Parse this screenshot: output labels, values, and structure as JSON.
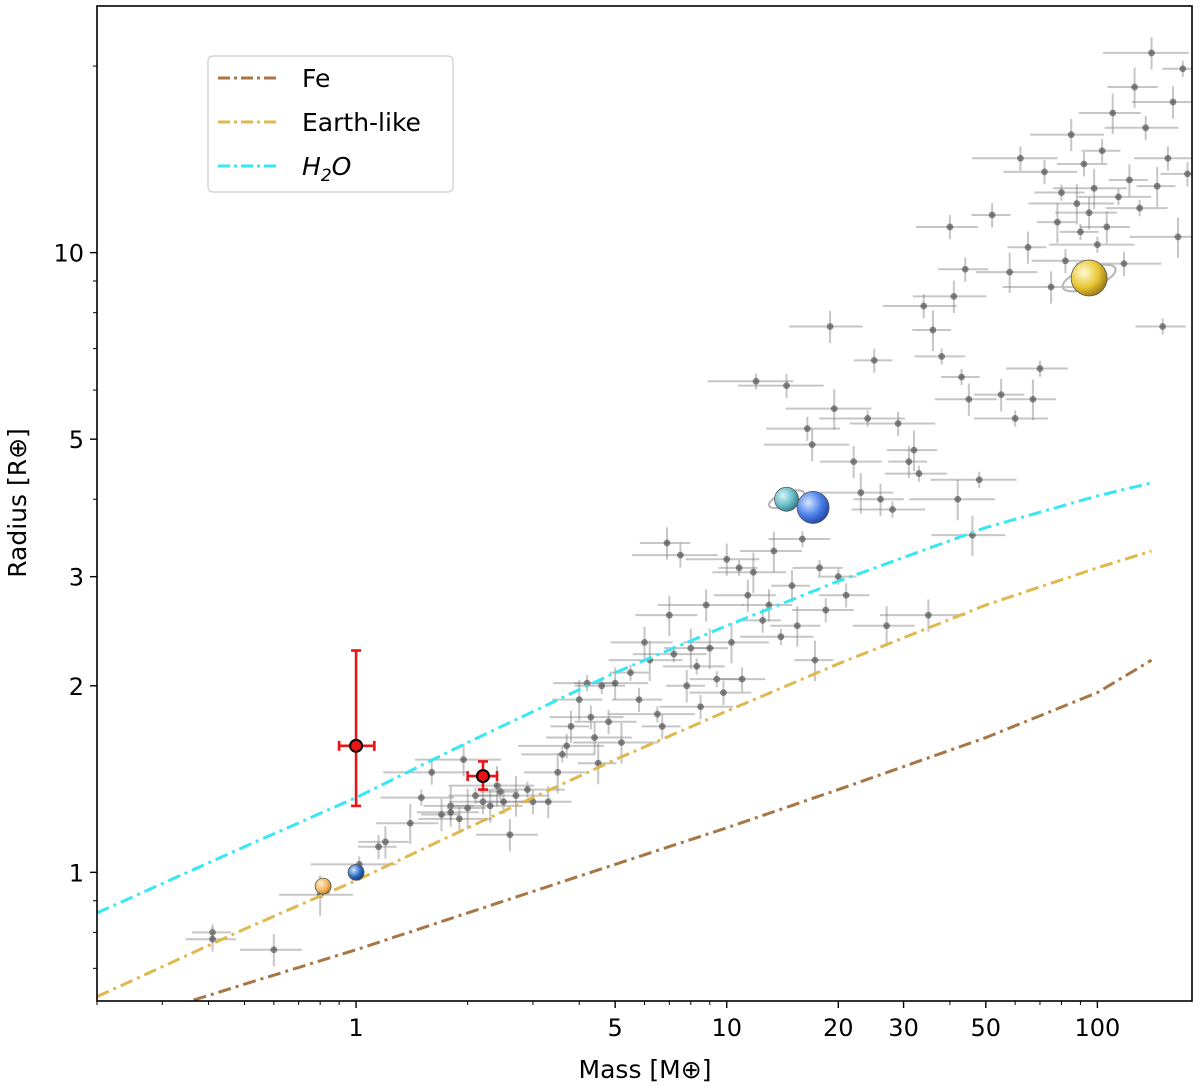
{
  "chart_data": {
    "type": "scatter",
    "title": "",
    "xlabel": "Mass [M⊕]",
    "ylabel": "Radius [R⊕]",
    "xscale": "log",
    "yscale": "log",
    "xlim": [
      0.2,
      180
    ],
    "ylim": [
      0.62,
      25
    ],
    "x_ticks": [
      1,
      5,
      10,
      20,
      30,
      50,
      100
    ],
    "x_tick_labels": [
      "1",
      "5",
      "10",
      "20",
      "30",
      "50",
      "100"
    ],
    "y_ticks": [
      1,
      2,
      3,
      5,
      10
    ],
    "y_tick_labels": [
      "1",
      "2",
      "3",
      "5",
      "10"
    ],
    "legend_position": "upper-left",
    "composition_curves": [
      {
        "name": "Fe",
        "label": "Fe",
        "color": "#a87545",
        "mass": [
          0.2,
          0.3,
          0.5,
          1,
          2,
          5,
          10,
          20,
          50,
          100,
          140
        ],
        "radius": [
          0.54,
          0.6,
          0.66,
          0.75,
          0.86,
          1.03,
          1.18,
          1.36,
          1.65,
          1.95,
          2.2
        ]
      },
      {
        "name": "Earth-like",
        "label": "Earth-like",
        "color": "#e0b84e",
        "mass": [
          0.2,
          0.5,
          1,
          2,
          5,
          10,
          20,
          50,
          100,
          140
        ],
        "radius": [
          0.63,
          0.81,
          0.97,
          1.18,
          1.52,
          1.82,
          2.17,
          2.7,
          3.1,
          3.3
        ]
      },
      {
        "name": "H2O",
        "label_main": "H",
        "label_sub": "2",
        "label_end": "O",
        "color": "#37e8f2",
        "mass": [
          0.2,
          0.5,
          1,
          2,
          5,
          10,
          20,
          50,
          100,
          140
        ],
        "radius": [
          0.86,
          1.1,
          1.32,
          1.62,
          2.1,
          2.5,
          2.95,
          3.6,
          4.05,
          4.25
        ]
      }
    ],
    "highlighted_planets": [
      {
        "mass": 1.0,
        "radius": 1.6,
        "mass_err": [
          0.1,
          0.12
        ],
        "radius_err": [
          0.32,
          0.68
        ],
        "color": "#e81416"
      },
      {
        "mass": 2.2,
        "radius": 1.43,
        "mass_err": [
          0.2,
          0.2
        ],
        "radius_err": [
          0.07,
          0.08
        ],
        "color": "#e81416"
      }
    ],
    "solar_system": [
      {
        "name": "Venus",
        "mass": 0.815,
        "radius": 0.95,
        "color": "#f0b35a"
      },
      {
        "name": "Earth",
        "mass": 1.0,
        "radius": 1.0,
        "color": "#2f6fc4"
      },
      {
        "name": "Uranus",
        "mass": 14.5,
        "radius": 4.0,
        "color": "#5fb8c4"
      },
      {
        "name": "Neptune",
        "mass": 17.1,
        "radius": 3.88,
        "color": "#4a7ee8"
      },
      {
        "name": "Saturn",
        "mass": 95,
        "radius": 9.1,
        "color": "#e8c632"
      }
    ],
    "exoplanets": [
      [
        0.41,
        0.8
      ],
      [
        0.41,
        0.78
      ],
      [
        0.6,
        0.75
      ],
      [
        0.8,
        0.92
      ],
      [
        1.02,
        1.03
      ],
      [
        1.15,
        1.1
      ],
      [
        1.2,
        1.12
      ],
      [
        1.4,
        1.2
      ],
      [
        1.5,
        1.32
      ],
      [
        1.6,
        1.45
      ],
      [
        1.7,
        1.24
      ],
      [
        1.8,
        1.28
      ],
      [
        1.8,
        1.25
      ],
      [
        1.9,
        1.22
      ],
      [
        1.95,
        1.52
      ],
      [
        2.0,
        1.27
      ],
      [
        2.1,
        1.33
      ],
      [
        2.2,
        1.3
      ],
      [
        2.3,
        1.28
      ],
      [
        2.4,
        1.38
      ],
      [
        2.45,
        1.35
      ],
      [
        2.5,
        1.3
      ],
      [
        2.6,
        1.15
      ],
      [
        2.7,
        1.33
      ],
      [
        2.9,
        1.36
      ],
      [
        3.0,
        1.3
      ],
      [
        3.3,
        1.3
      ],
      [
        3.5,
        1.45
      ],
      [
        3.6,
        1.55
      ],
      [
        3.7,
        1.6
      ],
      [
        3.8,
        1.72
      ],
      [
        4.0,
        1.9
      ],
      [
        4.2,
        2.02
      ],
      [
        4.3,
        1.78
      ],
      [
        4.4,
        1.65
      ],
      [
        4.5,
        1.5
      ],
      [
        4.6,
        2.0
      ],
      [
        4.8,
        1.75
      ],
      [
        5.0,
        2.02
      ],
      [
        5.2,
        1.62
      ],
      [
        5.5,
        2.1
      ],
      [
        5.8,
        1.9
      ],
      [
        6.0,
        2.35
      ],
      [
        6.2,
        2.2
      ],
      [
        6.5,
        1.8
      ],
      [
        6.7,
        1.72
      ],
      [
        6.9,
        3.4
      ],
      [
        7.0,
        2.6
      ],
      [
        7.2,
        2.25
      ],
      [
        7.5,
        3.25
      ],
      [
        7.8,
        2.0
      ],
      [
        8.0,
        2.3
      ],
      [
        8.3,
        2.15
      ],
      [
        8.5,
        1.85
      ],
      [
        8.8,
        2.7
      ],
      [
        9.0,
        2.3
      ],
      [
        9.4,
        2.05
      ],
      [
        9.8,
        1.95
      ],
      [
        10.0,
        3.2
      ],
      [
        10.3,
        2.35
      ],
      [
        10.8,
        3.1
      ],
      [
        11.0,
        2.05
      ],
      [
        11.4,
        2.8
      ],
      [
        11.8,
        3.05
      ],
      [
        12.0,
        6.2
      ],
      [
        12.5,
        2.55
      ],
      [
        13.0,
        2.7
      ],
      [
        13.4,
        3.3
      ],
      [
        14.0,
        2.4
      ],
      [
        14.5,
        6.1
      ],
      [
        15.0,
        2.9
      ],
      [
        15.5,
        2.5
      ],
      [
        16.0,
        3.45
      ],
      [
        16.5,
        5.2
      ],
      [
        17.0,
        4.9
      ],
      [
        17.3,
        2.2
      ],
      [
        17.8,
        3.1
      ],
      [
        18.5,
        2.65
      ],
      [
        19.0,
        7.6
      ],
      [
        19.5,
        5.6
      ],
      [
        20.0,
        3.0
      ],
      [
        21.0,
        2.8
      ],
      [
        22.0,
        4.6
      ],
      [
        23.0,
        4.1
      ],
      [
        24.0,
        5.4
      ],
      [
        25.0,
        6.7
      ],
      [
        26.0,
        4.0
      ],
      [
        27.0,
        2.5
      ],
      [
        28.0,
        3.85
      ],
      [
        29.0,
        5.3
      ],
      [
        31.0,
        4.6
      ],
      [
        32.0,
        4.8
      ],
      [
        33.0,
        4.4
      ],
      [
        34.0,
        8.2
      ],
      [
        35.0,
        2.6
      ],
      [
        36.0,
        7.5
      ],
      [
        38.0,
        6.8
      ],
      [
        40.0,
        11.0
      ],
      [
        41.0,
        8.5
      ],
      [
        42.0,
        4.0
      ],
      [
        43.0,
        6.3
      ],
      [
        44.0,
        9.4
      ],
      [
        45.0,
        5.8
      ],
      [
        46.0,
        3.5
      ],
      [
        48.0,
        4.3
      ],
      [
        52.0,
        11.5
      ],
      [
        55.0,
        5.9
      ],
      [
        58.0,
        9.3
      ],
      [
        60.0,
        5.4
      ],
      [
        62.0,
        14.2
      ],
      [
        65.0,
        10.2
      ],
      [
        67.0,
        5.8
      ],
      [
        70.0,
        6.5
      ],
      [
        72.0,
        13.5
      ],
      [
        75.0,
        8.8
      ],
      [
        78.0,
        11.2
      ],
      [
        80.0,
        12.5
      ],
      [
        82.0,
        9.7
      ],
      [
        85.0,
        15.5
      ],
      [
        88.0,
        12.0
      ],
      [
        90.0,
        10.8
      ],
      [
        92.0,
        13.9
      ],
      [
        95.0,
        11.6
      ],
      [
        98.0,
        12.7
      ],
      [
        100.0,
        10.3
      ],
      [
        103.0,
        14.6
      ],
      [
        106.0,
        11.0
      ],
      [
        110.0,
        16.8
      ],
      [
        114.0,
        12.3
      ],
      [
        118.0,
        9.6
      ],
      [
        122.0,
        13.1
      ],
      [
        126.0,
        18.5
      ],
      [
        130.0,
        11.8
      ],
      [
        135.0,
        15.9
      ],
      [
        140.0,
        21.0
      ],
      [
        145.0,
        12.8
      ],
      [
        150.0,
        7.6
      ],
      [
        155.0,
        14.2
      ],
      [
        160.0,
        17.5
      ],
      [
        165.0,
        10.6
      ],
      [
        170.0,
        19.8
      ],
      [
        175.0,
        13.4
      ]
    ]
  }
}
